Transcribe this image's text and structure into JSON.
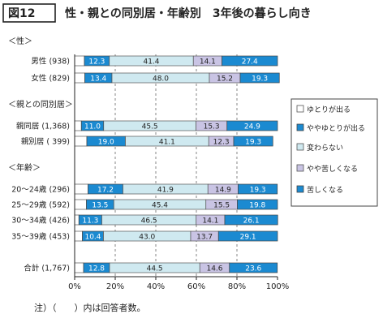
{
  "figure": {
    "label": "図12",
    "title": "性・親との同別居・年齢別　3年後の暮らし向き",
    "footnote": "注）（　　）内は回答者数。"
  },
  "chart_data": {
    "type": "bar",
    "stacked": true,
    "orientation": "horizontal",
    "percent": true,
    "x_ticks": [
      "0%",
      "20%",
      "40%",
      "60%",
      "80%",
      "100%"
    ],
    "xlim": [
      0,
      100
    ],
    "legend_position": "right",
    "groups": [
      {
        "heading": "＜性＞",
        "rows": [
          0,
          1
        ]
      },
      {
        "heading": "＜親との同別居＞",
        "rows": [
          2,
          3
        ]
      },
      {
        "heading": "＜年齢＞",
        "rows": [
          4,
          5,
          6,
          7
        ]
      },
      {
        "heading": "",
        "rows": [
          8
        ]
      }
    ],
    "categories": [
      "男性 (938)",
      "女性 (829)",
      "親同居 (1,368)",
      "親別居 (  399)",
      "20～24歳 (296)",
      "25～29歳 (592)",
      "30～34歳 (426)",
      "35～39歳 (453)",
      "合計 (1,767)"
    ],
    "series": [
      {
        "name": "ゆとりが出る",
        "values": [
          4.8,
          5.0,
          3.3,
          6.0,
          6.6,
          5.8,
          2.1,
          3.8,
          4.4
        ],
        "labels": [
          "",
          "",
          "",
          "",
          "",
          "",
          "",
          "",
          ""
        ]
      },
      {
        "name": "ややゆとりが出る",
        "values": [
          12.3,
          13.4,
          11.0,
          19.0,
          17.2,
          13.5,
          11.3,
          10.4,
          12.8
        ],
        "labels": [
          "12.3",
          "13.4",
          "11.0",
          "19.0",
          "17.2",
          "13.5",
          "11.3",
          "10.4",
          "12.8"
        ]
      },
      {
        "name": "変わらない",
        "values": [
          41.4,
          48.0,
          45.5,
          41.1,
          41.9,
          45.4,
          46.5,
          43.0,
          44.5
        ],
        "labels": [
          "41.4",
          "48.0",
          "45.5",
          "41.1",
          "41.9",
          "45.4",
          "46.5",
          "43.0",
          "44.5"
        ]
      },
      {
        "name": "やや苦しくなる",
        "values": [
          14.1,
          15.2,
          15.3,
          12.3,
          14.9,
          15.5,
          14.1,
          13.7,
          14.6
        ],
        "labels": [
          "14.1",
          "15.2",
          "15.3",
          "12.3",
          "14.9",
          "15.5",
          "14.1",
          "13.7",
          "14.6"
        ]
      },
      {
        "name": "苦しくなる",
        "values": [
          27.4,
          19.3,
          24.9,
          19.3,
          19.3,
          19.8,
          26.1,
          29.1,
          23.6
        ],
        "labels": [
          "27.4",
          "19.3",
          "24.9",
          "19.3",
          "19.3",
          "19.8",
          "26.1",
          "29.1",
          "23.6"
        ]
      }
    ],
    "colors": [
      "#ffffff",
      "#1b8ad1",
      "#cfe9f0",
      "#c9c4e4",
      "#1b8ad1"
    ],
    "edge_colors": [
      "#555555",
      "#444444",
      "#555555",
      "#555555",
      "#444444"
    ]
  }
}
